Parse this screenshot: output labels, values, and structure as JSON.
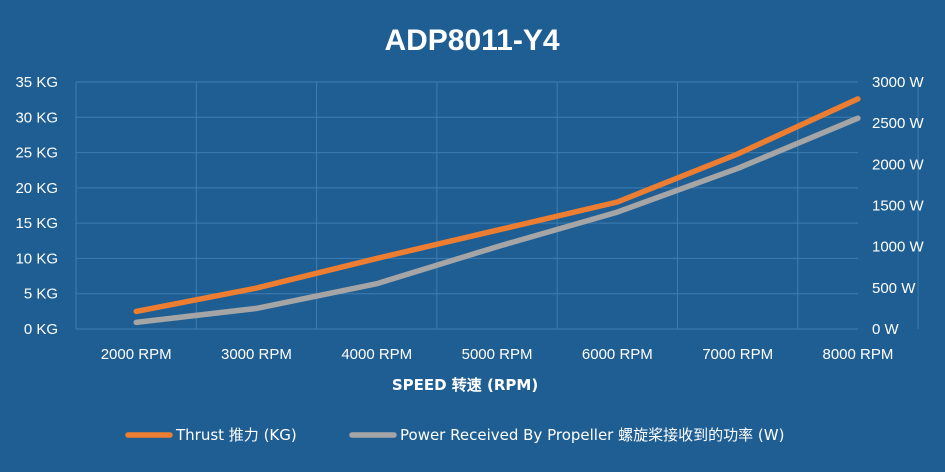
{
  "chart_data": {
    "type": "line",
    "title": "ADP8011-Y4",
    "xlabel": "SPEED 转速 (RPM)",
    "categories": [
      "2000 RPM",
      "3000 RPM",
      "4000 RPM",
      "5000 RPM",
      "6000 RPM",
      "7000 RPM",
      "8000 RPM"
    ],
    "x": [
      2000,
      3000,
      4000,
      5000,
      6000,
      7000,
      8000
    ],
    "y_left": {
      "ylim": [
        0,
        35
      ],
      "ticks": [
        0,
        5,
        10,
        15,
        20,
        25,
        30,
        35
      ],
      "unit": "KG"
    },
    "y_right": {
      "ylim": [
        0,
        3000
      ],
      "ticks": [
        0,
        500,
        1000,
        1500,
        2000,
        2500,
        3000
      ],
      "unit": "W"
    },
    "grid": true,
    "legend_position": "bottom",
    "series": [
      {
        "name": "Thrust 推力 (KG)",
        "axis": "left",
        "color": "#ed7d31",
        "values": [
          2.5,
          5.8,
          10.0,
          14.0,
          18.0,
          24.8,
          32.6
        ]
      },
      {
        "name": "Power Received By Propeller 螺旋桨接收到的功率 (W)",
        "axis": "right",
        "color": "#a5a5a5",
        "values": [
          80,
          250,
          550,
          1000,
          1420,
          1950,
          2560
        ]
      }
    ]
  }
}
